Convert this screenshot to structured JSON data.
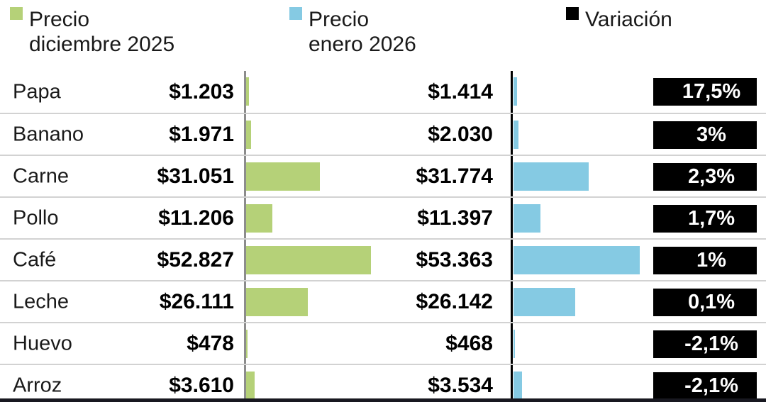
{
  "legend": {
    "items": [
      {
        "line1": "Precio",
        "line2": "diciembre 2025",
        "color": "#b5d178"
      },
      {
        "line1": "Precio",
        "line2": "enero 2026",
        "color": "#85cae3"
      },
      {
        "line1": "Variación",
        "line2": "",
        "color": "#000000"
      }
    ]
  },
  "chart_data": {
    "type": "bar",
    "orientation": "horizontal",
    "grid": false,
    "legend_position": "top",
    "xlim": [
      0,
      53363
    ],
    "categories": [
      "Papa",
      "Banano",
      "Carne",
      "Pollo",
      "Café",
      "Leche",
      "Huevo",
      "Arroz"
    ],
    "series": [
      {
        "name": "Precio diciembre 2025",
        "color": "#b5d178",
        "values": [
          1203,
          1971,
          31051,
          11206,
          52827,
          26111,
          478,
          3610
        ],
        "labels": [
          "$1.203",
          "$1.971",
          "$31.051",
          "$11.206",
          "$52.827",
          "$26.111",
          "$478",
          "$3.610"
        ]
      },
      {
        "name": "Precio enero 2026",
        "color": "#85cae3",
        "values": [
          1414,
          2030,
          31774,
          11397,
          53363,
          26142,
          468,
          3534
        ],
        "labels": [
          "$1.414",
          "$2.030",
          "$31.774",
          "$11.397",
          "$53.363",
          "$26.142",
          "$468",
          "$3.534"
        ]
      },
      {
        "name": "Variación",
        "color": "#000000",
        "values": [
          17.5,
          3,
          2.3,
          1.7,
          1,
          0.1,
          -2.1,
          -2.1
        ],
        "labels": [
          "17,5%",
          "3%",
          "2,3%",
          "1,7%",
          "1%",
          "0,1%",
          "-2,1%",
          "-2,1%"
        ]
      }
    ]
  },
  "colors": {
    "bar_green": "#b5d178",
    "bar_blue": "#85cae3",
    "badge_bg": "#000000",
    "badge_text": "#ffffff",
    "axis_green_line": "#8c8c8c",
    "axis_blue_line": "#000000",
    "row_separator": "#d2d2d2",
    "bottom_bar": "#181820",
    "text": "#1a1a1a"
  }
}
